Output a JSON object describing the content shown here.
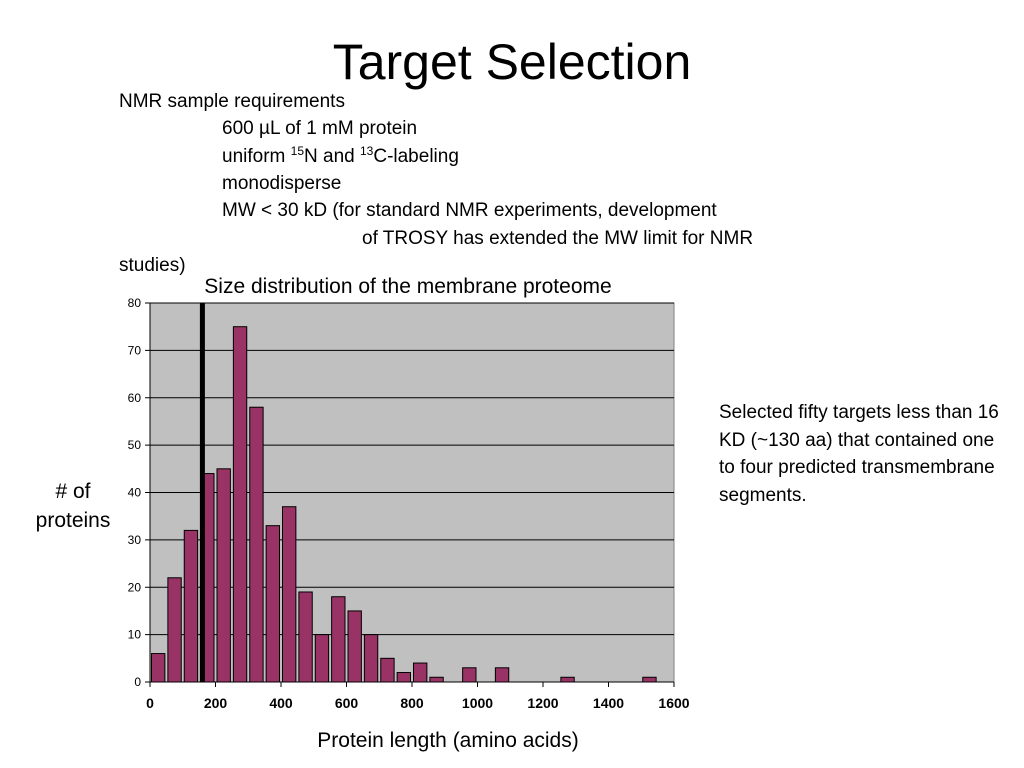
{
  "slide": {
    "title": "Target Selection"
  },
  "requirements": {
    "heading": "NMR sample requirements",
    "item1_prefix": "600 ",
    "item1_mu": "µ",
    "item1_suffix": "L of 1 mM protein",
    "item2_a": "uniform ",
    "item2_sup1": "15",
    "item2_b": "N and ",
    "item2_sup2": "13",
    "item2_c": "C-labeling",
    "item3": "monodisperse",
    "item4_line1": "MW < 30 kD (for standard NMR experiments, development",
    "item4_line2": "of TROSY has extended the MW limit for NMR",
    "item4_line3": "studies)"
  },
  "side_note": "Selected fifty targets less than 16 KD (~130 aa) that contained one to four predicted transmembrane segments.",
  "chart_data": {
    "type": "bar",
    "title": "Size distribution of the membrane proteome",
    "xlabel": "Protein length  (amino acids)",
    "ylabel": "# of proteins",
    "xlim": [
      0,
      1600
    ],
    "ylim": [
      0,
      80
    ],
    "x_ticks": [
      "0",
      "200",
      "400",
      "600",
      "800",
      "1000",
      "1200",
      "1400",
      "1600"
    ],
    "y_ticks": [
      "0",
      "10",
      "20",
      "30",
      "40",
      "50",
      "60",
      "70",
      "80"
    ],
    "bin_width": 50,
    "bins": [
      {
        "x": 25,
        "value": 6
      },
      {
        "x": 75,
        "value": 22
      },
      {
        "x": 125,
        "value": 32
      },
      {
        "x": 175,
        "value": 44
      },
      {
        "x": 225,
        "value": 45
      },
      {
        "x": 275,
        "value": 75
      },
      {
        "x": 325,
        "value": 58
      },
      {
        "x": 375,
        "value": 33
      },
      {
        "x": 425,
        "value": 37
      },
      {
        "x": 475,
        "value": 19
      },
      {
        "x": 525,
        "value": 10
      },
      {
        "x": 575,
        "value": 18
      },
      {
        "x": 625,
        "value": 15
      },
      {
        "x": 675,
        "value": 10
      },
      {
        "x": 725,
        "value": 5
      },
      {
        "x": 775,
        "value": 2
      },
      {
        "x": 825,
        "value": 4
      },
      {
        "x": 875,
        "value": 1
      },
      {
        "x": 975,
        "value": 3
      },
      {
        "x": 1075,
        "value": 3
      },
      {
        "x": 1275,
        "value": 1
      },
      {
        "x": 1525,
        "value": 1
      }
    ],
    "cutoff_line_x": 160,
    "grid": true,
    "colors": {
      "bar_fill": "#993366",
      "bar_stroke": "#000000",
      "plot_background": "#c0c0c0",
      "cutoff_line": "#000000"
    }
  }
}
